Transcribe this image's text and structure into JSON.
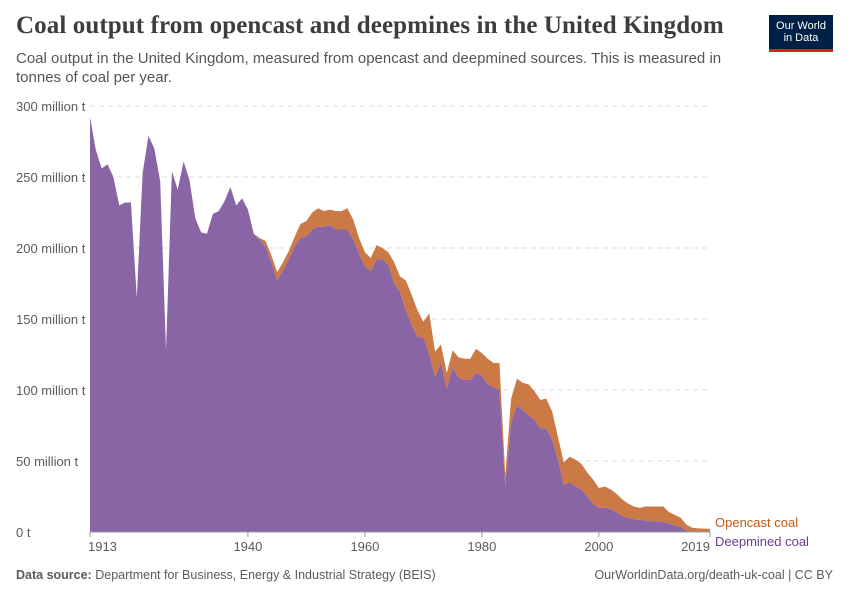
{
  "header": {
    "title": "Coal output from opencast and deepmines in the United Kingdom",
    "subtitle": "Coal output in the United Kingdom, measured from opencast and deepmined sources. This is measured in tonnes of coal per year.",
    "logo": [
      "Our World",
      "in Data"
    ]
  },
  "footer": {
    "source_label": "Data source:",
    "source": "Department for Business, Energy & Industrial Strategy (BEIS)",
    "url": "OurWorldinData.org/death-uk-coal | CC BY"
  },
  "colors": {
    "deepmined": "#8a65a6",
    "opencast": "#cb7945",
    "deepmined_label": "#6b3d8e",
    "opencast_label": "#c05917"
  },
  "chart_data": {
    "type": "area",
    "stacked": true,
    "xlim": [
      1913,
      2019
    ],
    "ylim": [
      0,
      300
    ],
    "grid": "horizontal dashed",
    "x_ticks": [
      "1913",
      "1940",
      "1960",
      "1980",
      "2000",
      "2019"
    ],
    "y_ticks": [
      "0 t",
      "50 million t",
      "100 million t",
      "150 million t",
      "200 million t",
      "250 million t",
      "300 million t"
    ],
    "y_tick_values": [
      0,
      50,
      100,
      150,
      200,
      250,
      300
    ],
    "x_tick_values": [
      1913,
      1940,
      1960,
      1980,
      2000,
      2019
    ],
    "legend": "right, inline labels",
    "x": [
      1913,
      1914,
      1915,
      1916,
      1917,
      1918,
      1919,
      1920,
      1921,
      1922,
      1923,
      1924,
      1925,
      1926,
      1927,
      1928,
      1929,
      1930,
      1931,
      1932,
      1933,
      1934,
      1935,
      1936,
      1937,
      1938,
      1939,
      1940,
      1941,
      1942,
      1943,
      1944,
      1945,
      1946,
      1947,
      1948,
      1949,
      1950,
      1951,
      1952,
      1953,
      1954,
      1955,
      1956,
      1957,
      1958,
      1959,
      1960,
      1961,
      1962,
      1963,
      1964,
      1965,
      1966,
      1967,
      1968,
      1969,
      1970,
      1971,
      1972,
      1973,
      1974,
      1975,
      1976,
      1977,
      1978,
      1979,
      1980,
      1981,
      1982,
      1983,
      1984,
      1985,
      1986,
      1987,
      1988,
      1989,
      1990,
      1991,
      1992,
      1993,
      1994,
      1995,
      1996,
      1997,
      1998,
      1999,
      2000,
      2001,
      2002,
      2003,
      2004,
      2005,
      2006,
      2007,
      2008,
      2009,
      2010,
      2011,
      2012,
      2013,
      2014,
      2015,
      2016,
      2017,
      2018,
      2019
    ],
    "series": [
      {
        "name": "Deepmined coal",
        "values": [
          292,
          269,
          256,
          259,
          250,
          230,
          232,
          232,
          165,
          253,
          279,
          270,
          247,
          128,
          254,
          241,
          261,
          248,
          221,
          211,
          210,
          224,
          226,
          233,
          243,
          230,
          235,
          227,
          210,
          206,
          201,
          190,
          177,
          184,
          192,
          201,
          207,
          208,
          213,
          215,
          215,
          216,
          213,
          213,
          213,
          206,
          196,
          187,
          184,
          192,
          192,
          188,
          175,
          169,
          156,
          146,
          137,
          137,
          125,
          109,
          119,
          101,
          116,
          109,
          107,
          107,
          112,
          110,
          104,
          102,
          100,
          32,
          77,
          89,
          86,
          82,
          79,
          73,
          73,
          65,
          51,
          33,
          35,
          32,
          30,
          25,
          20,
          17,
          17,
          16,
          14,
          11,
          10,
          9,
          8.5,
          8,
          7.5,
          7.5,
          7,
          6,
          4.5,
          3.5,
          1,
          0.02,
          0.02,
          0.02,
          0.02
        ]
      },
      {
        "name": "Opencast coal",
        "values": [
          0,
          0,
          0,
          0,
          0,
          0,
          0,
          0,
          0,
          0,
          0,
          0,
          0,
          0,
          0,
          0,
          0,
          0,
          0,
          0,
          0,
          0,
          0,
          0,
          0,
          0,
          0,
          0,
          0,
          1,
          4,
          5,
          6,
          6,
          6,
          7,
          10,
          11,
          12,
          13,
          11,
          11,
          13,
          13,
          15,
          14,
          11,
          10,
          9,
          10,
          8,
          9,
          15,
          11,
          21,
          21,
          19,
          11,
          29,
          18,
          13,
          11,
          12,
          14,
          15,
          15,
          17,
          16,
          18,
          17,
          19,
          8,
          17,
          19,
          19,
          22,
          20,
          20,
          21,
          20,
          16,
          16,
          18,
          19,
          18,
          17,
          17,
          14,
          15,
          14,
          13,
          12,
          10,
          9,
          8.5,
          10,
          10.5,
          10.5,
          11,
          8,
          7.5,
          6.5,
          4,
          3,
          2.5,
          2.4,
          2.2
        ]
      }
    ]
  }
}
